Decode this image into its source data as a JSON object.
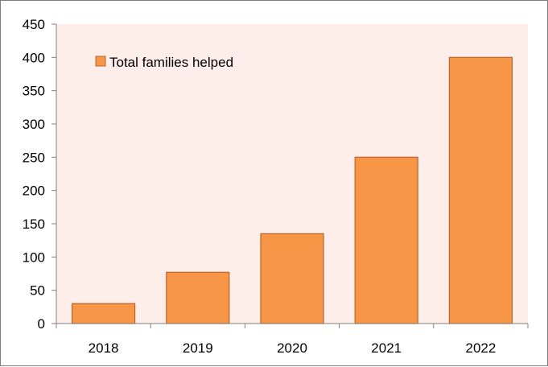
{
  "chart_data": {
    "type": "bar",
    "categories": [
      "2018",
      "2019",
      "2020",
      "2021",
      "2022"
    ],
    "series": [
      {
        "name": "Total families helped",
        "values": [
          30,
          77,
          135,
          250,
          400
        ]
      }
    ],
    "title": "",
    "xlabel": "",
    "ylabel": "",
    "ylim": [
      0,
      450
    ],
    "yticks": [
      0,
      50,
      100,
      150,
      200,
      250,
      300,
      350,
      400,
      450
    ],
    "grid": false,
    "legend_position": "top-left",
    "colors": {
      "bar_fill": "#f79646",
      "bar_stroke": "#b7652d",
      "plot_background": "#fdeeea",
      "axis": "#808080",
      "frame": "#7f7f7f"
    }
  }
}
